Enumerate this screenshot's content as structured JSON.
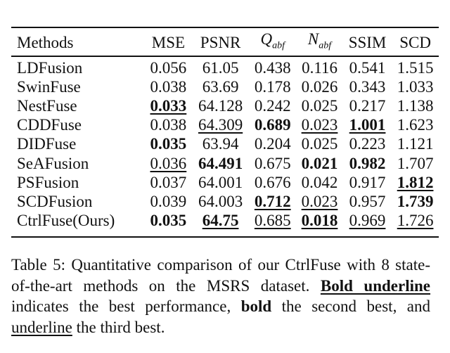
{
  "table": {
    "headers": [
      "Methods",
      "MSE",
      "PSNR",
      "Q_abf",
      "N_abf",
      "SSIM",
      "SCD"
    ],
    "header_math": {
      "q": {
        "base": "Q",
        "sub": "abf"
      },
      "n": {
        "base": "N",
        "sub": "abf"
      }
    },
    "rows": [
      {
        "method": "LDFusion",
        "values": [
          "0.056",
          "61.05",
          "0.438",
          "0.116",
          "0.541",
          "1.515"
        ],
        "styles": [
          "",
          "",
          "",
          "",
          "",
          ""
        ]
      },
      {
        "method": "SwinFuse",
        "values": [
          "0.038",
          "63.69",
          "0.178",
          "0.026",
          "0.343",
          "1.033"
        ],
        "styles": [
          "",
          "",
          "",
          "",
          "",
          ""
        ]
      },
      {
        "method": "NestFuse",
        "values": [
          "0.033",
          "64.128",
          "0.242",
          "0.025",
          "0.217",
          "1.138"
        ],
        "styles": [
          "bu",
          "",
          "",
          "",
          "",
          ""
        ]
      },
      {
        "method": "CDDFuse",
        "values": [
          "0.038",
          "64.309",
          "0.689",
          "0.023",
          "1.001",
          "1.623"
        ],
        "styles": [
          "",
          "u",
          "b",
          "u",
          "bu",
          ""
        ]
      },
      {
        "method": "DIDFuse",
        "values": [
          "0.035",
          "63.94",
          "0.204",
          "0.025",
          "0.223",
          "1.121"
        ],
        "styles": [
          "b",
          "",
          "",
          "",
          "",
          ""
        ]
      },
      {
        "method": "SeAFusion",
        "values": [
          "0.036",
          "64.491",
          "0.675",
          "0.021",
          "0.982",
          "1.707"
        ],
        "styles": [
          "u",
          "b",
          "",
          "b",
          "b",
          ""
        ]
      },
      {
        "method": "PSFusion",
        "values": [
          "0.037",
          "64.001",
          "0.676",
          "0.042",
          "0.917",
          "1.812"
        ],
        "styles": [
          "",
          "",
          "",
          "",
          "",
          "bu"
        ]
      },
      {
        "method": "SCDFusion",
        "values": [
          "0.039",
          "64.003",
          "0.712",
          "0.023",
          "0.957",
          "1.739"
        ],
        "styles": [
          "",
          "",
          "bu",
          "u",
          "",
          "b"
        ]
      },
      {
        "method": "CtrlFuse(Ours)",
        "values": [
          "0.035",
          "64.75",
          "0.685",
          "0.018",
          "0.969",
          "1.726"
        ],
        "styles": [
          "b",
          "bu",
          "u",
          "bu",
          "u",
          "u"
        ]
      }
    ]
  },
  "caption": {
    "line1": "Table 5: Quantitative comparison of our CtrlFuse with 8 state-of-the-art methods on the MSRS dataset.",
    "bold_underline": "Bold underline",
    "mid1": " indicates the best performance, ",
    "bold": "bold",
    "mid2": " the second best, and ",
    "underline": "underline",
    "end": " the third best."
  }
}
